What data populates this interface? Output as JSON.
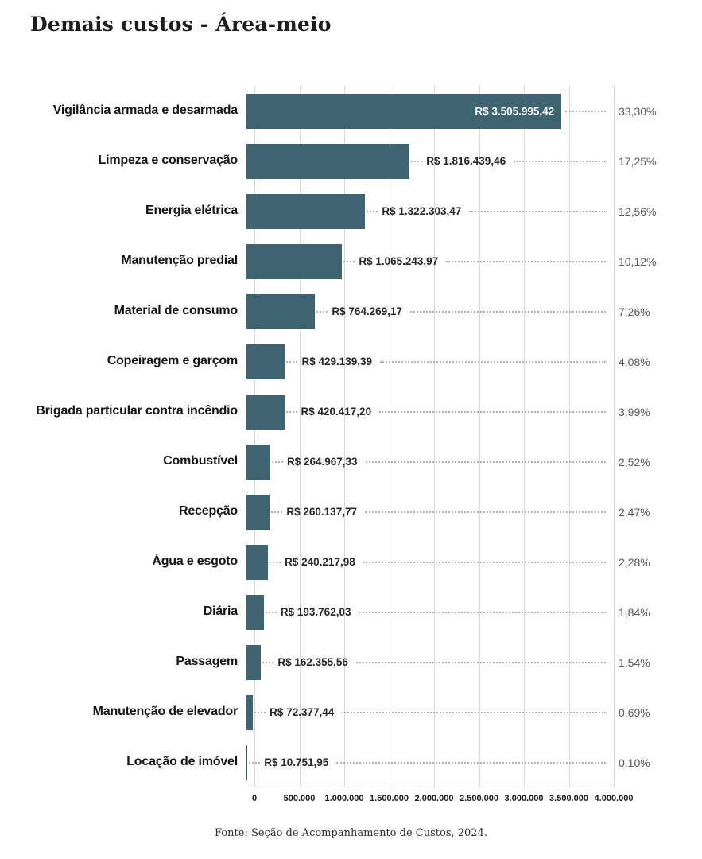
{
  "title": "Demais custos - Área-meio",
  "source": "Fonte: Seção de Acompanhamento de Custos, 2024.",
  "chart_data": {
    "type": "bar",
    "orientation": "horizontal",
    "title": "Demais custos - Área-meio",
    "xlabel": "",
    "ylabel": "",
    "xlim": [
      0,
      4000000
    ],
    "grid": true,
    "categories": [
      "Vigilância armada e desarmada",
      "Limpeza e conservação",
      "Energia elétrica",
      "Manutenção predial",
      "Material de consumo",
      "Copeiragem e garçom",
      "Brigada particular contra incêndio",
      "Combustível",
      "Recepção",
      "Água e esgoto",
      "Diária",
      "Passagem",
      "Manutenção de elevador",
      "Locação de imóvel"
    ],
    "values": [
      3505995.42,
      1816439.46,
      1322303.47,
      1065243.97,
      764269.17,
      429139.39,
      420417.2,
      264967.33,
      260137.77,
      240217.98,
      193762.03,
      162355.56,
      72377.44,
      10751.95
    ],
    "value_labels": [
      "R$ 3.505.995,42",
      "R$ 1.816.439,46",
      "R$ 1.322.303,47",
      "R$ 1.065.243,97",
      "R$ 764.269,17",
      "R$ 429.139,39",
      "R$ 420.417,20",
      "R$ 264.967,33",
      "R$ 260.137,77",
      "R$ 240.217,98",
      "R$ 193.762,03",
      "R$ 162.355,56",
      "R$ 72.377,44",
      "R$ 10.751,95"
    ],
    "pct_values": [
      33.3,
      17.25,
      12.56,
      10.12,
      7.26,
      4.08,
      3.99,
      2.52,
      2.47,
      2.28,
      1.84,
      1.54,
      0.69,
      0.1
    ],
    "pct_labels": [
      "33,30%",
      "17,25%",
      "12,56%",
      "10,12%",
      "7,26%",
      "4,08%",
      "3,99%",
      "2,52%",
      "2,47%",
      "2,28%",
      "1,84%",
      "1,54%",
      "0,69%",
      "0,10%"
    ],
    "x_ticks": [
      "0",
      "500.000",
      "1.000.000",
      "1.500.000",
      "2.000.000",
      "2.500.000",
      "3.000.000",
      "3.500.000",
      "4.000.000"
    ],
    "inside_value_label_rows": [
      0
    ],
    "colors": {
      "bar": "#3e6472",
      "value_text_inside": "#ffffff",
      "value_text_outside": "#262626",
      "pct_text": "#595959",
      "gridline": "#d9d9d9",
      "axis_line": "#8c8c8c",
      "leader_dots": "#b0b0b0"
    }
  }
}
